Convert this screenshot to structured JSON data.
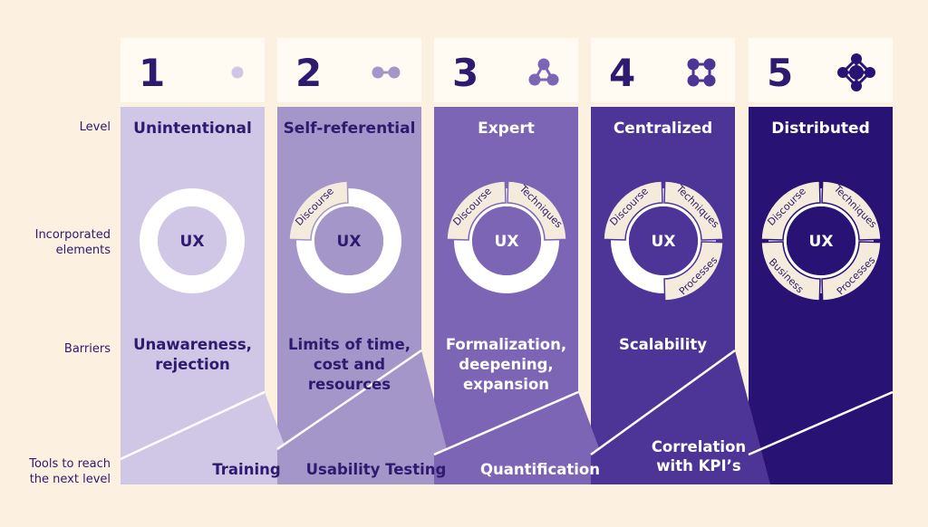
{
  "row_labels": {
    "level": "Level",
    "elements": [
      "Incorporated",
      "elements"
    ],
    "barriers": "Barriers",
    "tools": [
      "Tools to reach",
      "the next level"
    ]
  },
  "center_label": "UX",
  "colors": {
    "page_bg": "#fcf0e1",
    "header_bg": "#fffaf2",
    "label_text": "#2e1a6e",
    "segment": "#f5ebdc",
    "stages": [
      "#cfc7e5",
      "#a496c9",
      "#7c65b5",
      "#4d3497",
      "#281273"
    ],
    "shades": [
      "#b8acd9",
      "#8b7bbf",
      "#5e48a3",
      "#3b2585",
      "#281273"
    ],
    "icon": [
      "#cfc7e5",
      "#a496c9",
      "#7c65b5",
      "#4d3497",
      "#281273"
    ],
    "dark_text": "#2e1a6e"
  },
  "stages": [
    {
      "number": "1",
      "icon": "single-node-icon",
      "level": "Unintentional",
      "segments": [],
      "barriers": [
        "Unawareness,",
        "rejection"
      ],
      "tool": [
        "Training"
      ]
    },
    {
      "number": "2",
      "icon": "two-nodes-icon",
      "level": "Self-referential",
      "segments": [
        "Discourse"
      ],
      "barriers": [
        "Limits of time,",
        "cost and",
        "resources"
      ],
      "tool": [
        "Usability Testing"
      ]
    },
    {
      "number": "3",
      "icon": "three-nodes-icon",
      "level": "Expert",
      "segments": [
        "Discourse",
        "Techniques"
      ],
      "barriers": [
        "Formalization,",
        "deepening,",
        "expansion"
      ],
      "tool": [
        "Quantification"
      ]
    },
    {
      "number": "4",
      "icon": "four-nodes-icon",
      "level": "Centralized",
      "segments": [
        "Discourse",
        "Techniques",
        "Processes"
      ],
      "barriers": [
        "Scalability"
      ],
      "tool": [
        "Correlation",
        "with KPI’s"
      ]
    },
    {
      "number": "5",
      "icon": "network-icon",
      "level": "Distributed",
      "segments": [
        "Discourse",
        "Techniques",
        "Processes",
        "Business"
      ],
      "barriers": [],
      "tool": []
    }
  ]
}
